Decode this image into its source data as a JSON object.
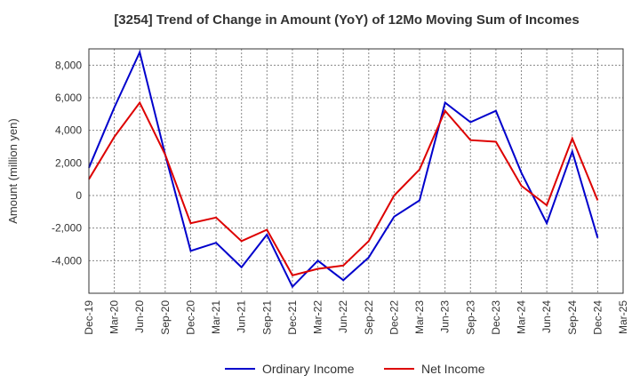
{
  "chart_data": {
    "type": "line",
    "title": "[3254]  Trend of Change in Amount (YoY) of 12Mo Moving Sum of Incomes",
    "ylabel": "Amount (million yen)",
    "xlabel": "",
    "ylim": [
      -6000,
      9000
    ],
    "yticks": [
      -4000,
      -2000,
      0,
      2000,
      4000,
      6000,
      8000
    ],
    "ytick_labels": [
      "-4,000",
      "-2,000",
      "0",
      "2,000",
      "4,000",
      "6,000",
      "8,000"
    ],
    "categories": [
      "Dec-19",
      "Mar-20",
      "Jun-20",
      "Sep-20",
      "Dec-20",
      "Mar-21",
      "Jun-21",
      "Sep-21",
      "Dec-21",
      "Mar-22",
      "Jun-22",
      "Sep-22",
      "Dec-22",
      "Mar-23",
      "Jun-23",
      "Sep-23",
      "Dec-23",
      "Mar-24",
      "Jun-24",
      "Sep-24",
      "Dec-24",
      "Mar-25"
    ],
    "grid": true,
    "legend_position": "bottom",
    "series": [
      {
        "name": "Ordinary Income",
        "color": "#0000cc",
        "values": [
          1700,
          5400,
          8800,
          2500,
          -3400,
          -2900,
          -4400,
          -2400,
          -5600,
          -4000,
          -5200,
          -3800,
          -1300,
          -300,
          5700,
          4500,
          5200,
          1400,
          -1700,
          2700,
          -2600,
          null
        ]
      },
      {
        "name": "Net Income",
        "color": "#dd0000",
        "values": [
          1000,
          3600,
          5700,
          2500,
          -1700,
          -1350,
          -2800,
          -2100,
          -4900,
          -4500,
          -4300,
          -2800,
          0,
          1600,
          5200,
          3400,
          3300,
          600,
          -600,
          3500,
          -300,
          null
        ]
      }
    ]
  }
}
